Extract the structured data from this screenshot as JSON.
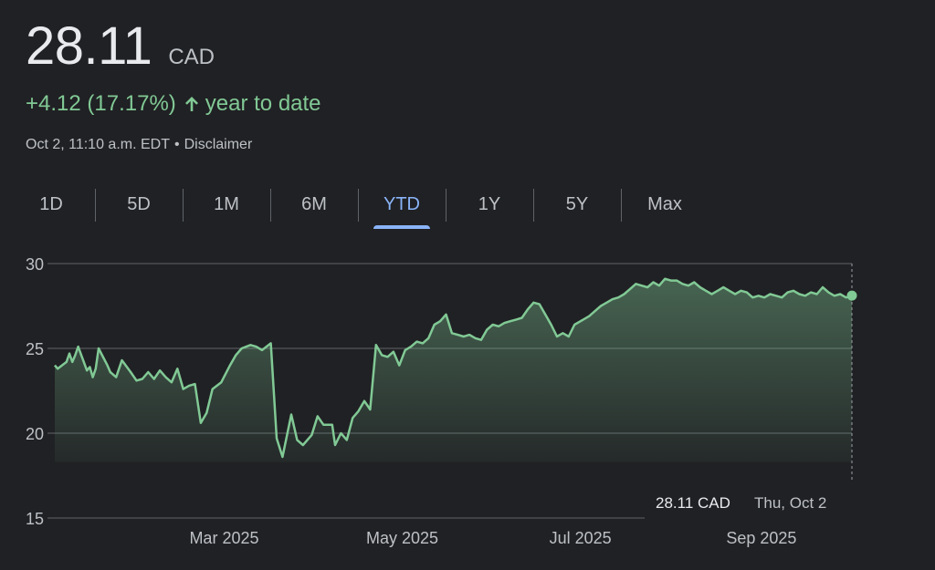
{
  "quote": {
    "price": "28.11",
    "currency": "CAD",
    "change": "+4.12 (17.17%)",
    "period_label": "year to date",
    "timestamp": "Oct 2, 11:10 a.m. EDT",
    "separator": "•",
    "disclaimer": "Disclaimer"
  },
  "tabs": [
    {
      "label": "1D",
      "active": false
    },
    {
      "label": "5D",
      "active": false
    },
    {
      "label": "1M",
      "active": false
    },
    {
      "label": "6M",
      "active": false
    },
    {
      "label": "YTD",
      "active": true
    },
    {
      "label": "1Y",
      "active": false
    },
    {
      "label": "5Y",
      "active": false
    },
    {
      "label": "Max",
      "active": false
    }
  ],
  "colors": {
    "background": "#202124",
    "line": "#81c995",
    "positive": "#81c995",
    "tab_active": "#8ab4f8",
    "gridline": "#5f6368"
  },
  "tooltip": {
    "value": "28.11 CAD",
    "date": "Thu, Oct 2"
  },
  "chart_data": {
    "type": "area",
    "ylim": [
      15,
      30
    ],
    "y_ticks": [
      "30",
      "25",
      "20",
      "15"
    ],
    "x_ticks": [
      "Mar 2025",
      "May 2025",
      "Jul 2025",
      "Sep 2025"
    ],
    "x_tick_dates": [
      "2025-03-01",
      "2025-05-01",
      "2025-07-01",
      "2025-09-01"
    ],
    "grid": true,
    "series": [
      {
        "x": [
          "2025-01-02",
          "2025-01-03",
          "2025-01-06",
          "2025-01-07",
          "2025-01-08",
          "2025-01-09",
          "2025-01-10",
          "2025-01-13",
          "2025-01-14",
          "2025-01-15",
          "2025-01-16",
          "2025-01-17",
          "2025-01-20",
          "2025-01-21",
          "2025-01-23",
          "2025-01-25",
          "2025-01-28",
          "2025-01-30",
          "2025-02-01",
          "2025-02-03",
          "2025-02-05",
          "2025-02-07",
          "2025-02-09",
          "2025-02-11",
          "2025-02-13",
          "2025-02-15",
          "2025-02-17",
          "2025-02-19",
          "2025-02-21",
          "2025-02-23",
          "2025-02-25",
          "2025-02-28",
          "2025-03-03",
          "2025-03-05",
          "2025-03-07",
          "2025-03-10",
          "2025-03-12",
          "2025-03-14",
          "2025-03-17",
          "2025-03-19",
          "2025-03-21",
          "2025-03-24",
          "2025-03-26",
          "2025-03-28",
          "2025-03-31",
          "2025-04-02",
          "2025-04-04",
          "2025-04-07",
          "2025-04-08",
          "2025-04-10",
          "2025-04-12",
          "2025-04-14",
          "2025-04-16",
          "2025-04-18",
          "2025-04-20",
          "2025-04-22",
          "2025-04-24",
          "2025-04-26",
          "2025-04-28",
          "2025-04-30",
          "2025-05-02",
          "2025-05-04",
          "2025-05-06",
          "2025-05-08",
          "2025-05-10",
          "2025-05-12",
          "2025-05-14",
          "2025-05-16",
          "2025-05-18",
          "2025-05-20",
          "2025-05-22",
          "2025-05-24",
          "2025-05-26",
          "2025-05-28",
          "2025-05-30",
          "2025-06-01",
          "2025-06-03",
          "2025-06-05",
          "2025-06-07",
          "2025-06-09",
          "2025-06-11",
          "2025-06-13",
          "2025-06-15",
          "2025-06-17",
          "2025-06-19",
          "2025-06-21",
          "2025-06-23",
          "2025-06-25",
          "2025-06-27",
          "2025-06-29",
          "2025-07-02",
          "2025-07-04",
          "2025-07-06",
          "2025-07-08",
          "2025-07-10",
          "2025-07-12",
          "2025-07-14",
          "2025-07-16",
          "2025-07-18",
          "2025-07-20",
          "2025-07-22",
          "2025-07-24",
          "2025-07-26",
          "2025-07-28",
          "2025-07-30",
          "2025-08-01",
          "2025-08-03",
          "2025-08-05",
          "2025-08-07",
          "2025-08-09",
          "2025-08-11",
          "2025-08-13",
          "2025-08-15",
          "2025-08-17",
          "2025-08-19",
          "2025-08-21",
          "2025-08-23",
          "2025-08-25",
          "2025-08-27",
          "2025-08-29",
          "2025-08-31",
          "2025-09-02",
          "2025-09-04",
          "2025-09-06",
          "2025-09-08",
          "2025-09-10",
          "2025-09-12",
          "2025-09-14",
          "2025-09-16",
          "2025-09-18",
          "2025-09-20",
          "2025-09-22",
          "2025-09-24",
          "2025-09-26",
          "2025-09-28",
          "2025-09-30",
          "2025-10-02"
        ],
        "y": [
          24.0,
          23.8,
          24.2,
          24.7,
          24.2,
          24.6,
          25.1,
          23.7,
          23.9,
          23.3,
          23.8,
          25.0,
          24.0,
          23.6,
          23.3,
          24.3,
          23.6,
          23.1,
          23.2,
          23.6,
          23.2,
          23.7,
          23.3,
          23.0,
          23.8,
          22.6,
          22.8,
          22.9,
          20.6,
          21.2,
          22.6,
          23.0,
          24.0,
          24.6,
          25.0,
          25.2,
          25.1,
          24.9,
          25.3,
          19.7,
          18.6,
          21.1,
          19.6,
          19.3,
          19.9,
          21.0,
          20.5,
          20.5,
          19.3,
          20.0,
          19.6,
          20.9,
          21.3,
          21.9,
          21.4,
          25.2,
          24.6,
          24.5,
          24.8,
          24.0,
          24.9,
          25.1,
          25.4,
          25.3,
          25.6,
          26.4,
          26.6,
          27.0,
          25.9,
          25.8,
          25.7,
          25.8,
          25.6,
          25.5,
          26.1,
          26.4,
          26.3,
          26.5,
          26.6,
          26.7,
          26.8,
          27.3,
          27.7,
          27.6,
          27.0,
          26.4,
          25.7,
          25.9,
          25.7,
          26.4,
          26.7,
          26.9,
          27.2,
          27.5,
          27.7,
          27.9,
          28.0,
          28.2,
          28.5,
          28.8,
          28.7,
          28.6,
          28.9,
          28.7,
          29.1,
          29.0,
          29.0,
          28.8,
          28.7,
          28.9,
          28.6,
          28.4,
          28.2,
          28.4,
          28.6,
          28.4,
          28.2,
          28.4,
          28.3,
          28.0,
          28.1,
          28.0,
          28.2,
          28.1,
          28.0,
          28.3,
          28.4,
          28.2,
          28.1,
          28.3,
          28.2,
          28.6,
          28.3,
          28.1,
          28.2,
          28.0,
          28.11
        ]
      }
    ]
  }
}
